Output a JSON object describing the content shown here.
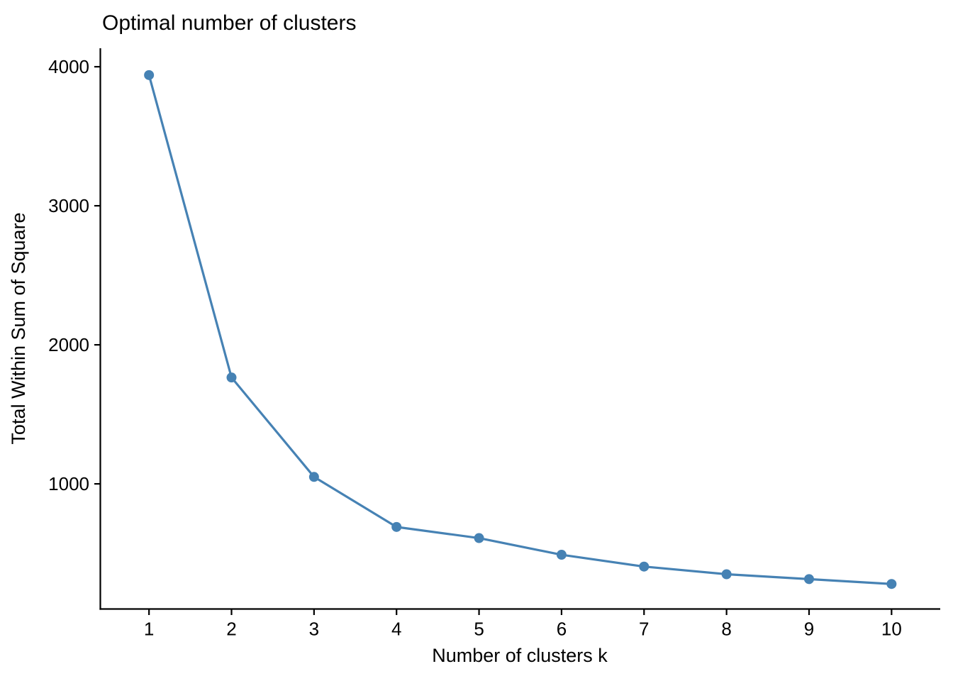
{
  "chart_data": {
    "type": "line",
    "title": "Optimal number of clusters",
    "xlabel": "Number of clusters k",
    "ylabel": "Total Within Sum of Square",
    "x": [
      1,
      2,
      3,
      4,
      5,
      6,
      7,
      8,
      9,
      10
    ],
    "series": [
      {
        "name": "total-within-sum-of-square",
        "values": [
          3940,
          1765,
          1050,
          690,
          610,
          490,
          405,
          350,
          315,
          280
        ]
      }
    ],
    "x_tick_labels": [
      "1",
      "2",
      "3",
      "4",
      "5",
      "6",
      "7",
      "8",
      "9",
      "10"
    ],
    "y_tick_values": [
      1000,
      2000,
      3000,
      4000
    ],
    "y_tick_labels": [
      "1000",
      "2000",
      "3000",
      "4000"
    ],
    "xlim": [
      0.41,
      10.59
    ],
    "ylim": [
      100,
      4133
    ],
    "grid": false,
    "legend": "none",
    "line_color": "#4682B4",
    "point_color": "#4682B4",
    "axis_color": "#000000",
    "text_color": "#000000",
    "background": "#FFFFFF"
  }
}
